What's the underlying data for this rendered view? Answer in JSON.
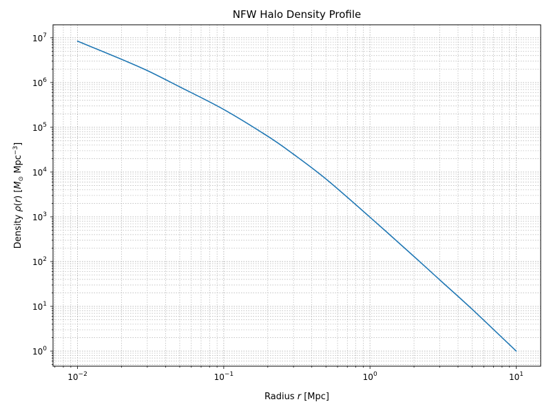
{
  "chart_data": {
    "type": "line",
    "title": "NFW Halo Density Profile",
    "xlabel": "Radius r [Mpc]",
    "ylabel": "Density ρ(r) [M⊙ Mpc⁻³]",
    "xscale": "log",
    "yscale": "log",
    "xlim": [
      0.0068,
      14.7
    ],
    "ylim": [
      0.46,
      19500000
    ],
    "grid": "both (major and minor), dotted",
    "legend": "none",
    "x_ticks": [
      {
        "base": "10",
        "exp": "−2",
        "value": 0.01
      },
      {
        "base": "10",
        "exp": "−1",
        "value": 0.1
      },
      {
        "base": "10",
        "exp": "0",
        "value": 1
      },
      {
        "base": "10",
        "exp": "1",
        "value": 10
      }
    ],
    "y_ticks": [
      {
        "base": "10",
        "exp": "0",
        "value": 1
      },
      {
        "base": "10",
        "exp": "1",
        "value": 10
      },
      {
        "base": "10",
        "exp": "2",
        "value": 100
      },
      {
        "base": "10",
        "exp": "3",
        "value": 1000
      },
      {
        "base": "10",
        "exp": "4",
        "value": 10000
      },
      {
        "base": "10",
        "exp": "5",
        "value": 100000
      },
      {
        "base": "10",
        "exp": "6",
        "value": 1000000
      },
      {
        "base": "10",
        "exp": "7",
        "value": 10000000
      }
    ],
    "series": [
      {
        "color": "#1f77b4",
        "x": [
          0.01,
          0.02,
          0.03,
          0.05,
          0.1,
          0.2,
          0.3,
          0.5,
          1,
          2,
          3,
          5,
          10
        ],
        "y": [
          8400000,
          3300000,
          1850000,
          800000,
          250000,
          63000,
          25000,
          7000,
          980,
          130,
          39,
          8.6,
          1.0
        ]
      }
    ]
  }
}
